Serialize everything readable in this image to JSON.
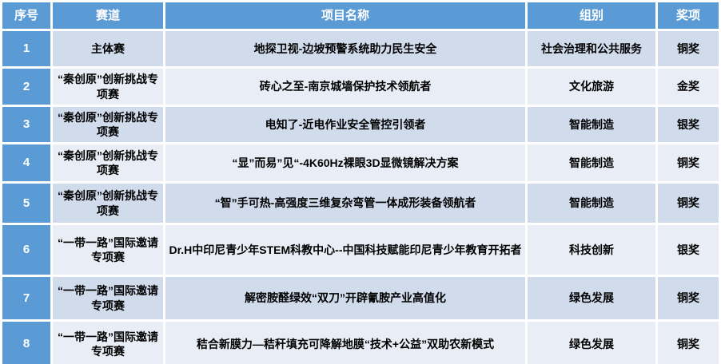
{
  "table": {
    "name": "competition-awards-table",
    "colors": {
      "header_bg": "#5B9BD5",
      "serial_col_bg": "#5B9BD5",
      "row_band_dark": "#D0DBEC",
      "row_band_light": "#E9EDF6",
      "header_text": "#FFFFFF",
      "body_text": "#000000",
      "grid_gap": "#FFFFFF"
    },
    "headers": [
      "序号",
      "赛道",
      "项目名称",
      "组别",
      "奖项"
    ],
    "rows": [
      {
        "no": "1",
        "track": "主体赛",
        "project": "地探卫视-边坡预警系统助力民生安全",
        "group": "社会治理和公共服务",
        "award": "铜奖"
      },
      {
        "no": "2",
        "track": "“秦创原”创新挑战专项赛",
        "project": "砖心之至-南京城墙保护技术领航者",
        "group": "文化旅游",
        "award": "金奖"
      },
      {
        "no": "3",
        "track": "“秦创原”创新挑战专项赛",
        "project": "电知了-近电作业安全管控引领者",
        "group": "智能制造",
        "award": "银奖"
      },
      {
        "no": "4",
        "track": "“秦创原”创新挑战专项赛",
        "project": "“显”而易”见“-4K60Hz裸眼3D显微镜解决方案",
        "group": "智能制造",
        "award": "铜奖"
      },
      {
        "no": "5",
        "track": "“秦创原”创新挑战专项赛",
        "project": "“智”手可热-高强度三维复杂弯管一体成形装备领航者",
        "group": "智能制造",
        "award": "铜奖"
      },
      {
        "no": "6",
        "track": "“一带一路”国际邀请专项赛",
        "project": "Dr.H中印尼青少年STEM科教中心--中国科技赋能印尼青少年教育开拓者",
        "group": "科技创新",
        "award": "银奖"
      },
      {
        "no": "7",
        "track": "“一带一路”国际邀请专项赛",
        "project": "解密胺醛绿效“双刀”开辟氰胺产业高值化",
        "group": "绿色发展",
        "award": "铜奖"
      },
      {
        "no": "8",
        "track": "“一带一路”国际邀请专项赛",
        "project": "秸合新膜力—秸秆填充可降解地膜“技术+公益”双助农新模式",
        "group": "绿色发展",
        "award": "铜奖"
      }
    ]
  }
}
